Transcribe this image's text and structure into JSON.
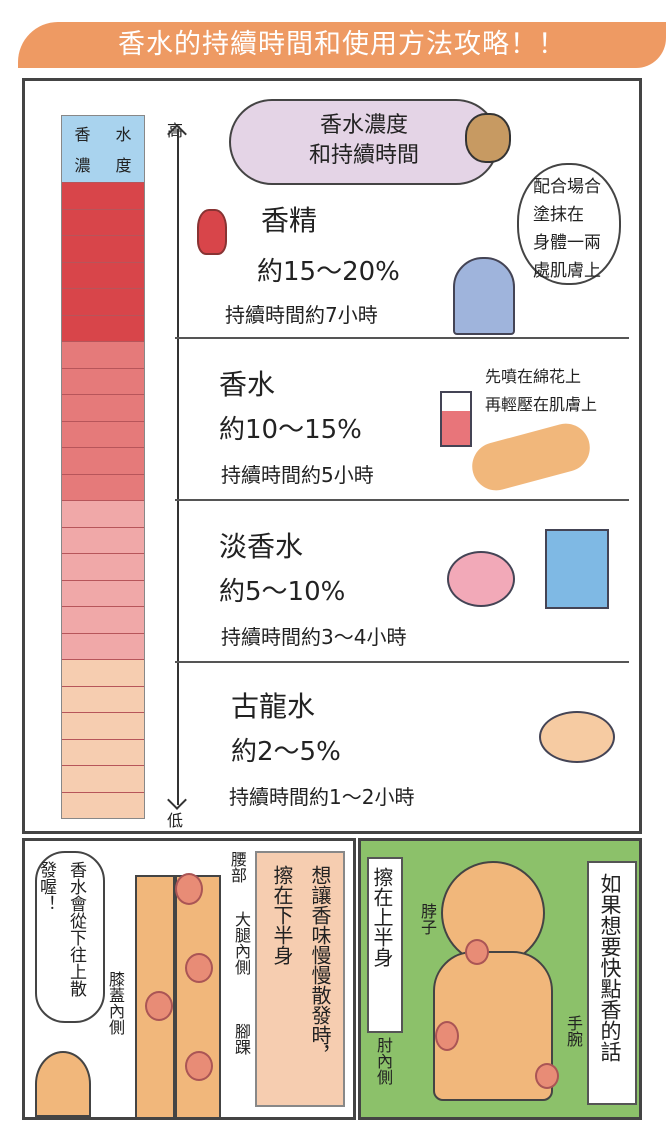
{
  "title": "香水的持續時間和使用方法攻略！！",
  "bar": {
    "header": [
      "香",
      "水",
      "濃",
      "度"
    ],
    "high": "高",
    "low": "低",
    "cells": [
      "#d8454a",
      "#d8454a",
      "#d8454a",
      "#d8454a",
      "#d8454a",
      "#d8454a",
      "#e57a7a",
      "#e57a7a",
      "#e57a7a",
      "#e57a7a",
      "#e57a7a",
      "#e57a7a",
      "#f0a8a8",
      "#f0a8a8",
      "#f0a8a8",
      "#f0a8a8",
      "#f0a8a8",
      "#f0a8a8",
      "#f6cdb0",
      "#f6cdb0",
      "#f6cdb0",
      "#f6cdb0",
      "#f6cdb0",
      "#f6cdb0"
    ]
  },
  "cloud": {
    "line1": "香水濃度",
    "line2": "和持續時間"
  },
  "types": [
    {
      "name": "香精",
      "pct": "約15～20%",
      "dur": "持續時間約7小時"
    },
    {
      "name": "香水",
      "pct": "約10～15%",
      "dur": "持續時間約5小時"
    },
    {
      "name": "淡香水",
      "pct": "約5～10%",
      "dur": "持續時間約3～4小時"
    },
    {
      "name": "古龍水",
      "pct": "約2～5%",
      "dur": "持續時間約1～2小時"
    }
  ],
  "tips": {
    "parfum": [
      "配合場合",
      "塗抹在",
      "身體一兩",
      "處肌膚上"
    ],
    "edp": [
      "先噴在綿花上",
      "再輕壓在肌膚上"
    ]
  },
  "lower": {
    "bubble": "香水會從下往上散發喔！",
    "title": "想讓香味慢慢散發時，",
    "sub": "擦在下半身",
    "waist": "腰部",
    "thigh": "大腿內側",
    "knee": "膝蓋內側",
    "ankle": "腳踝"
  },
  "upper": {
    "title": "如果想要快點香的話",
    "sub": "擦在上半身",
    "neck": "脖子",
    "elbow": "肘內側",
    "wrist": "手腕"
  }
}
